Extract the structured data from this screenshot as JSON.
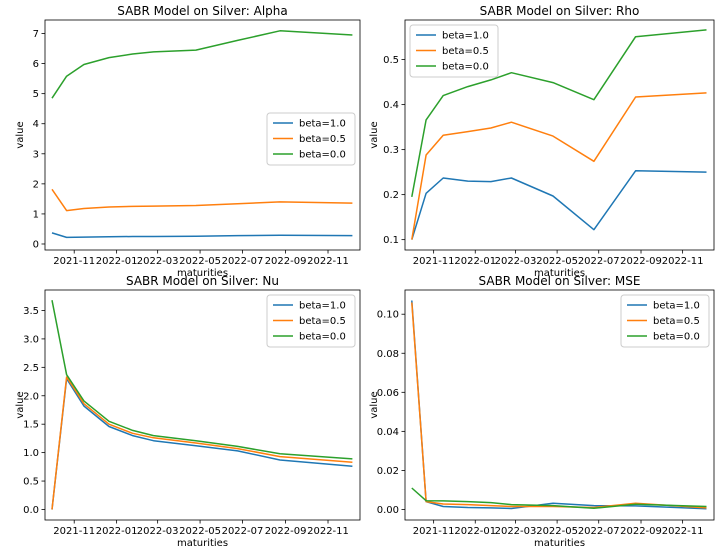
{
  "chart_data": [
    {
      "type": "line",
      "title": "SABR Model on Silver: Alpha",
      "xlabel": "maturities",
      "ylabel": "value",
      "xlim": [
        "2021-09-20",
        "2022-12-17"
      ],
      "ylim": [
        -0.2,
        7.45
      ],
      "xticks": [
        "2021-11",
        "2022-01",
        "2022-03",
        "2022-05",
        "2022-07",
        "2022-09",
        "2022-11"
      ],
      "yticks": [
        0,
        1,
        2,
        3,
        4,
        5,
        6,
        7
      ],
      "grid": false,
      "legend": "center-right",
      "x": [
        "2021-09-30",
        "2021-10-21",
        "2021-11-15",
        "2021-12-21",
        "2022-01-24",
        "2022-02-23",
        "2022-04-25",
        "2022-06-24",
        "2022-08-24",
        "2022-12-06"
      ],
      "series": [
        {
          "name": "beta=1.0",
          "color": "#1f77b4",
          "values": [
            0.37,
            0.22,
            0.23,
            0.24,
            0.25,
            0.25,
            0.26,
            0.28,
            0.29,
            0.28
          ]
        },
        {
          "name": "beta=0.5",
          "color": "#ff7f0e",
          "values": [
            1.82,
            1.11,
            1.18,
            1.23,
            1.25,
            1.26,
            1.28,
            1.34,
            1.4,
            1.36
          ]
        },
        {
          "name": "beta=0.0",
          "color": "#2ca02c",
          "values": [
            4.85,
            5.58,
            5.97,
            6.2,
            6.32,
            6.39,
            6.45,
            6.77,
            7.09,
            6.95
          ]
        }
      ]
    },
    {
      "type": "line",
      "title": "SABR Model on Silver: Rho",
      "xlabel": "maturities",
      "ylabel": "value",
      "xlim": [
        "2021-09-20",
        "2022-12-17"
      ],
      "ylim": [
        0.077,
        0.588
      ],
      "xticks": [
        "2021-11",
        "2022-01",
        "2022-03",
        "2022-05",
        "2022-07",
        "2022-09",
        "2022-11"
      ],
      "yticks": [
        0.1,
        0.2,
        0.3,
        0.4,
        0.5
      ],
      "grid": false,
      "legend": "top-left",
      "x": [
        "2021-09-30",
        "2021-10-21",
        "2021-11-15",
        "2021-12-21",
        "2022-01-24",
        "2022-02-23",
        "2022-04-25",
        "2022-06-24",
        "2022-08-24",
        "2022-12-06"
      ],
      "series": [
        {
          "name": "beta=1.0",
          "color": "#1f77b4",
          "values": [
            0.1,
            0.203,
            0.237,
            0.23,
            0.229,
            0.237,
            0.197,
            0.122,
            0.253,
            0.25
          ]
        },
        {
          "name": "beta=0.5",
          "color": "#ff7f0e",
          "values": [
            0.1,
            0.288,
            0.332,
            0.34,
            0.348,
            0.361,
            0.33,
            0.274,
            0.417,
            0.426
          ]
        },
        {
          "name": "beta=0.0",
          "color": "#2ca02c",
          "values": [
            0.195,
            0.366,
            0.42,
            0.44,
            0.455,
            0.471,
            0.449,
            0.411,
            0.551,
            0.566
          ]
        }
      ]
    },
    {
      "type": "line",
      "title": "SABR Model on Silver: Nu",
      "xlabel": "maturities",
      "ylabel": "value",
      "xlim": [
        "2021-09-20",
        "2022-12-17"
      ],
      "ylim": [
        -0.185,
        3.86
      ],
      "xticks": [
        "2021-11",
        "2022-01",
        "2022-03",
        "2022-05",
        "2022-07",
        "2022-09",
        "2022-11"
      ],
      "yticks": [
        0.0,
        0.5,
        1.0,
        1.5,
        2.0,
        2.5,
        3.0,
        3.5
      ],
      "ytick_labels": [
        "0.0",
        "0.5",
        "1.0",
        "1.5",
        "2.0",
        "2.5",
        "3.0",
        "3.5"
      ],
      "grid": false,
      "legend": "top-right",
      "x": [
        "2021-09-30",
        "2021-10-21",
        "2021-11-15",
        "2021-12-21",
        "2022-01-24",
        "2022-02-23",
        "2022-04-25",
        "2022-06-24",
        "2022-08-24",
        "2022-12-06"
      ],
      "series": [
        {
          "name": "beta=1.0",
          "color": "#1f77b4",
          "values": [
            0.0,
            2.3,
            1.82,
            1.46,
            1.3,
            1.21,
            1.12,
            1.03,
            0.87,
            0.76
          ]
        },
        {
          "name": "beta=0.5",
          "color": "#ff7f0e",
          "values": [
            0.0,
            2.33,
            1.86,
            1.5,
            1.34,
            1.26,
            1.17,
            1.07,
            0.93,
            0.83
          ]
        },
        {
          "name": "beta=0.0",
          "color": "#2ca02c",
          "values": [
            3.68,
            2.37,
            1.91,
            1.55,
            1.39,
            1.3,
            1.21,
            1.11,
            0.98,
            0.89
          ]
        }
      ]
    },
    {
      "type": "line",
      "title": "SABR Model on Silver: MSE",
      "xlabel": "maturities",
      "ylabel": "value",
      "xlim": [
        "2021-09-20",
        "2022-12-17"
      ],
      "ylim": [
        -0.0054,
        0.1124
      ],
      "xticks": [
        "2021-11",
        "2022-01",
        "2022-03",
        "2022-05",
        "2022-07",
        "2022-09",
        "2022-11"
      ],
      "yticks": [
        0.0,
        0.02,
        0.04,
        0.06,
        0.08,
        0.1
      ],
      "ytick_labels": [
        "0.00",
        "0.02",
        "0.04",
        "0.06",
        "0.08",
        "0.10"
      ],
      "grid": false,
      "legend": "top-right",
      "x": [
        "2021-09-30",
        "2021-10-21",
        "2021-11-15",
        "2021-12-21",
        "2022-01-24",
        "2022-02-23",
        "2022-04-25",
        "2022-06-24",
        "2022-08-24",
        "2022-12-06"
      ],
      "series": [
        {
          "name": "beta=1.0",
          "color": "#1f77b4",
          "values": [
            0.107,
            0.004,
            0.0015,
            0.001,
            0.0008,
            0.0005,
            0.0032,
            0.002,
            0.0018,
            0.0004
          ]
        },
        {
          "name": "beta=0.5",
          "color": "#ff7f0e",
          "values": [
            0.106,
            0.004,
            0.0028,
            0.0025,
            0.002,
            0.0015,
            0.0015,
            0.001,
            0.0032,
            0.0008
          ]
        },
        {
          "name": "beta=0.0",
          "color": "#2ca02c",
          "values": [
            0.011,
            0.0045,
            0.0044,
            0.004,
            0.0035,
            0.0025,
            0.002,
            0.0006,
            0.0027,
            0.0015
          ]
        }
      ]
    }
  ]
}
